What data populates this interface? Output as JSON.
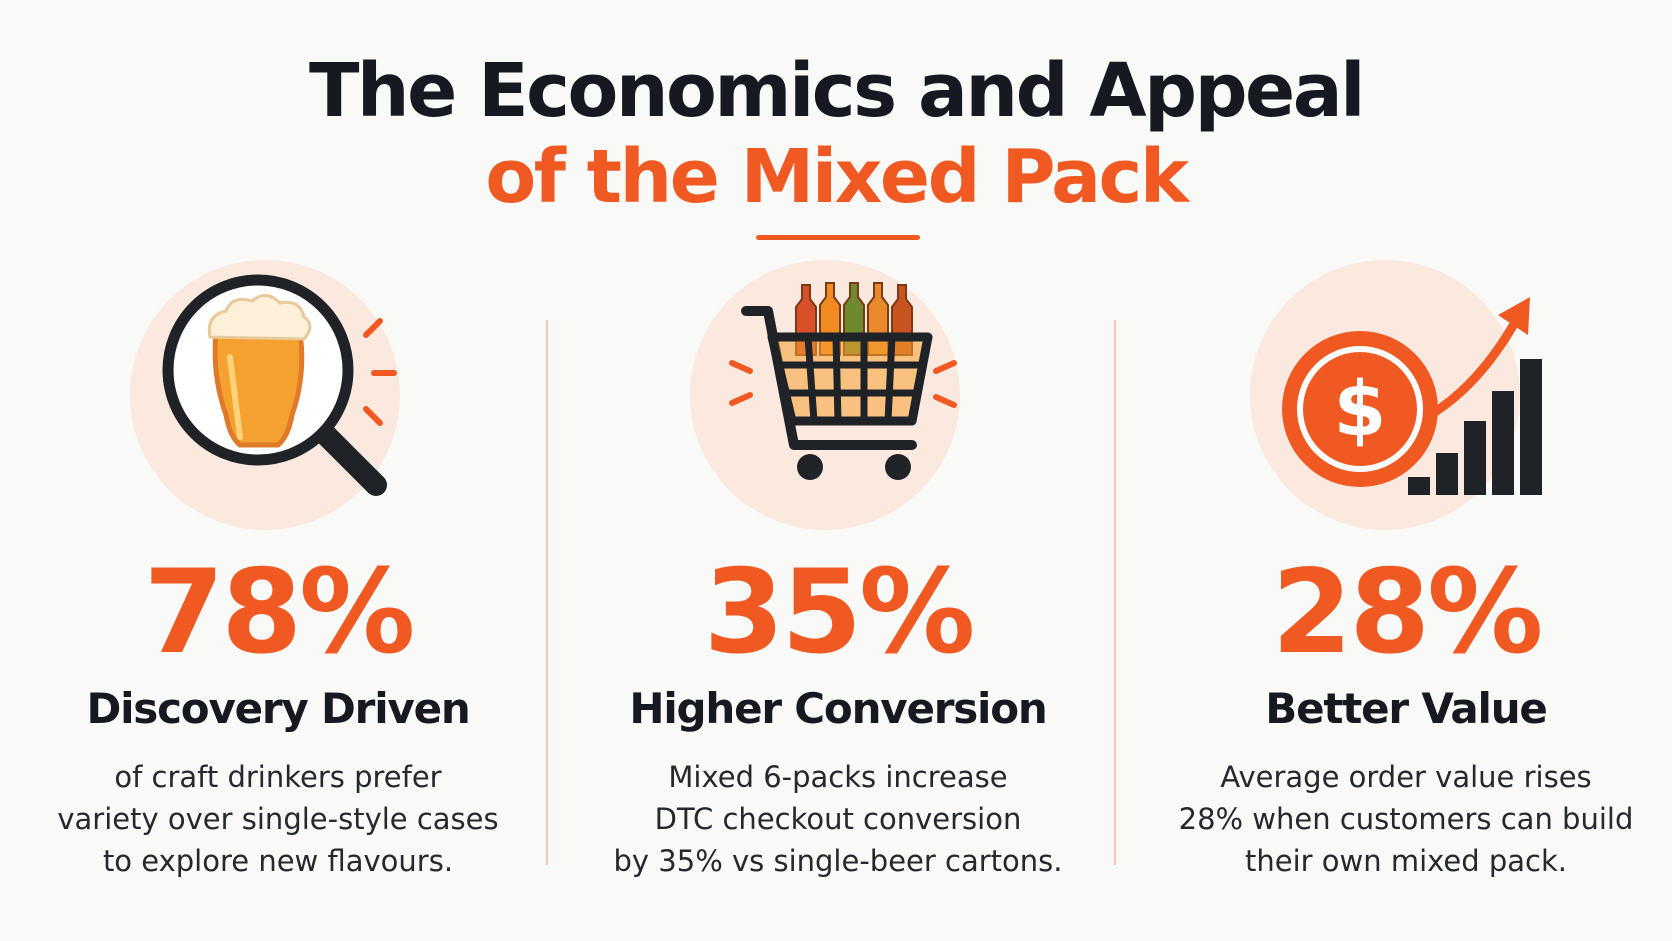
{
  "header": {
    "title_line1": "The Economics and Appeal",
    "title_line2": "of the Mixed Pack"
  },
  "colors": {
    "accent": "#f05a22",
    "text_dark": "#161a20",
    "icon_bg": "#fbe9df",
    "background": "#f9f9f8"
  },
  "stats": [
    {
      "icon": "beer-magnifier-icon",
      "value": "78%",
      "heading": "Discovery Driven",
      "desc_lines": [
        "of craft drinkers prefer",
        "variety over single-style cases",
        "to explore new flavours."
      ]
    },
    {
      "icon": "shopping-cart-bottles-icon",
      "value": "35%",
      "heading": "Higher Conversion",
      "desc_lines": [
        "Mixed 6-packs increase",
        "DTC checkout conversion",
        "by 35% vs single-beer cartons."
      ]
    },
    {
      "icon": "dollar-growth-chart-icon",
      "value": "28%",
      "heading": "Better Value",
      "desc_lines": [
        "Average order value rises",
        "28% when customers can build",
        "their own mixed pack."
      ]
    }
  ]
}
